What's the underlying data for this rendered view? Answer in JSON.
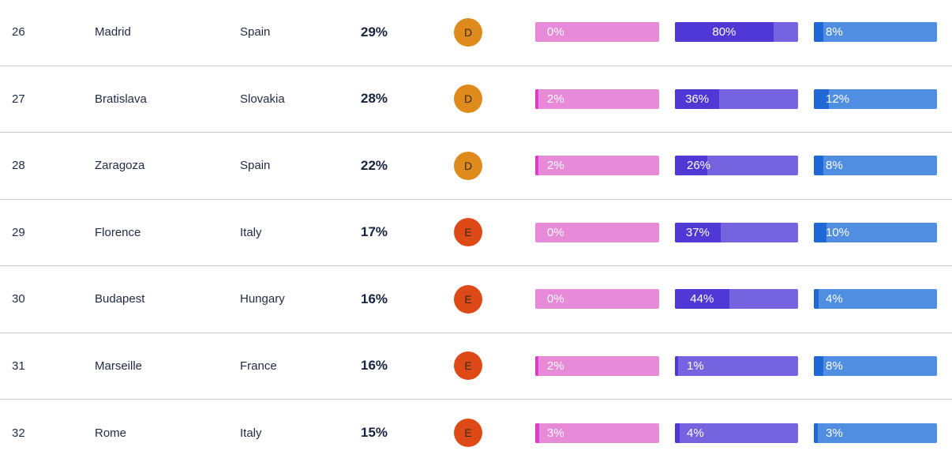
{
  "colors": {
    "grade_D": "#df8a1d",
    "grade_E": "#dd4a17"
  },
  "rows": [
    {
      "rank": "26",
      "city": "Madrid",
      "country": "Spain",
      "score": "29%",
      "grade": "D",
      "m1": 0,
      "m1_label": "0%",
      "m2": 80,
      "m2_label": "80%",
      "m3": 8,
      "m3_label": "8%"
    },
    {
      "rank": "27",
      "city": "Bratislava",
      "country": "Slovakia",
      "score": "28%",
      "grade": "D",
      "m1": 2,
      "m1_label": "2%",
      "m2": 36,
      "m2_label": "36%",
      "m3": 12,
      "m3_label": "12%"
    },
    {
      "rank": "28",
      "city": "Zaragoza",
      "country": "Spain",
      "score": "22%",
      "grade": "D",
      "m1": 2,
      "m1_label": "2%",
      "m2": 26,
      "m2_label": "26%",
      "m3": 8,
      "m3_label": "8%"
    },
    {
      "rank": "29",
      "city": "Florence",
      "country": "Italy",
      "score": "17%",
      "grade": "E",
      "m1": 0,
      "m1_label": "0%",
      "m2": 37,
      "m2_label": "37%",
      "m3": 10,
      "m3_label": "10%"
    },
    {
      "rank": "30",
      "city": "Budapest",
      "country": "Hungary",
      "score": "16%",
      "grade": "E",
      "m1": 0,
      "m1_label": "0%",
      "m2": 44,
      "m2_label": "44%",
      "m3": 4,
      "m3_label": "4%"
    },
    {
      "rank": "31",
      "city": "Marseille",
      "country": "France",
      "score": "16%",
      "grade": "E",
      "m1": 2,
      "m1_label": "2%",
      "m2": 1,
      "m2_label": "1%",
      "m3": 8,
      "m3_label": "8%"
    },
    {
      "rank": "32",
      "city": "Rome",
      "country": "Italy",
      "score": "15%",
      "grade": "E",
      "m1": 3,
      "m1_label": "3%",
      "m2": 4,
      "m2_label": "4%",
      "m3": 3,
      "m3_label": "3%"
    }
  ]
}
